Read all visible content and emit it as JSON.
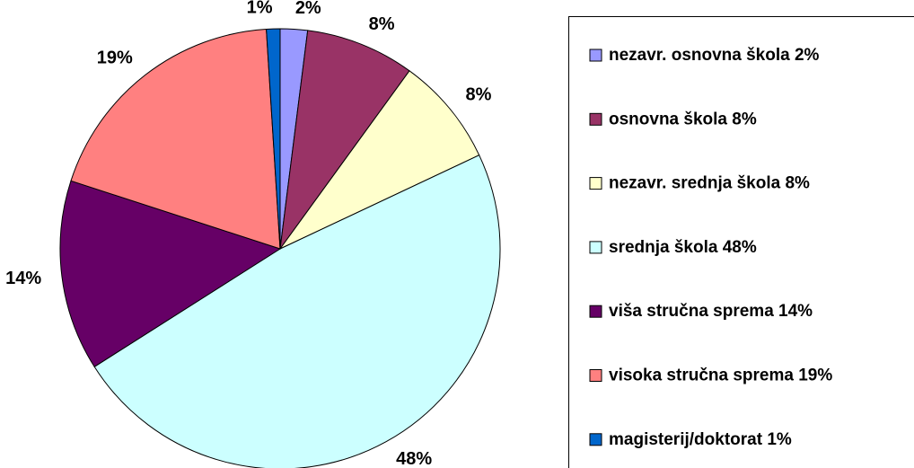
{
  "chart_data": {
    "type": "pie",
    "categories": [
      "nezavr. osnovna škola 2%",
      "osnovna škola 8%",
      "nezavr. srednja škola 8%",
      "srednja škola 48%",
      "viša stručna sprema 14%",
      "visoka stručna sprema 19%",
      "magisterij/doktorat 1%"
    ],
    "values": [
      2,
      8,
      8,
      48,
      14,
      19,
      1
    ],
    "value_labels": [
      "2%",
      "8%",
      "8%",
      "48%",
      "14%",
      "19%",
      "1%"
    ],
    "colors": [
      "#9999ff",
      "#993366",
      "#ffffcc",
      "#ccffff",
      "#660066",
      "#ff8080",
      "#0066cc"
    ],
    "legend": "right"
  }
}
